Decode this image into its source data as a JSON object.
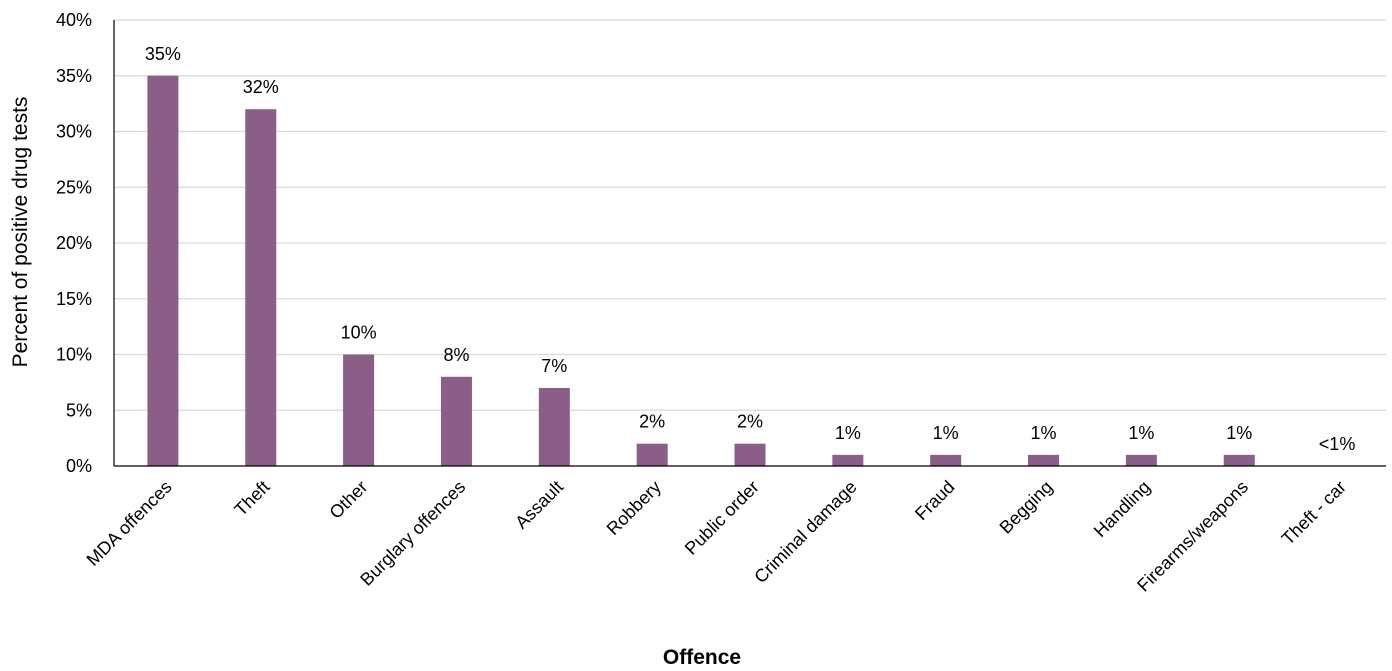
{
  "chart_data": {
    "type": "bar",
    "xlabel": "Offence",
    "ylabel": "Percent of positive drug tests",
    "ylim": [
      0,
      40
    ],
    "yticks": [
      {
        "value": 0,
        "label": "0%"
      },
      {
        "value": 5,
        "label": "5%"
      },
      {
        "value": 10,
        "label": "10%"
      },
      {
        "value": 15,
        "label": "15%"
      },
      {
        "value": 20,
        "label": "20%"
      },
      {
        "value": 25,
        "label": "25%"
      },
      {
        "value": 30,
        "label": "30%"
      },
      {
        "value": 35,
        "label": "35%"
      },
      {
        "value": 40,
        "label": "40%"
      }
    ],
    "categories": [
      "MDA offences",
      "Theft",
      "Other",
      "Burglary offences",
      "Assault",
      "Robbery",
      "Public order",
      "Criminal damage",
      "Fraud",
      "Begging",
      "Handling",
      "Firearms/weapons",
      "Theft - car"
    ],
    "values": [
      35,
      32,
      10,
      8,
      7,
      2,
      2,
      1,
      1,
      1,
      1,
      1,
      0
    ],
    "data_labels": [
      "35%",
      "32%",
      "10%",
      "8%",
      "7%",
      "2%",
      "2%",
      "1%",
      "1%",
      "1%",
      "1%",
      "1%",
      "<1%"
    ],
    "bar_color": "#8b5e88",
    "grid": true,
    "gridline_color": "#d9d9d9",
    "legend": "none"
  }
}
